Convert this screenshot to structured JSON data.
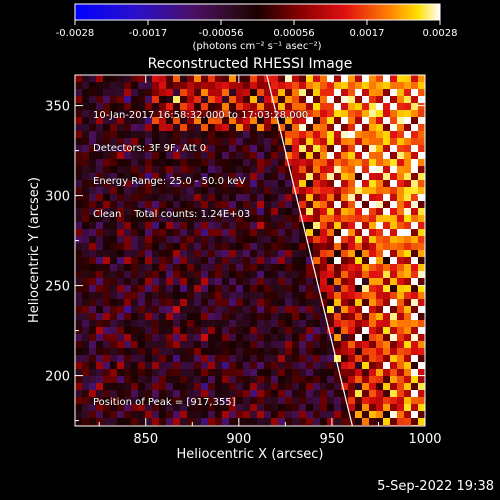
{
  "chart_data": {
    "type": "heatmap",
    "title": "Reconstructed RHESSI Image",
    "xlabel": "Heliocentric X (arcsec)",
    "ylabel": "Heliocentric Y (arcsec)",
    "xlim": [
      812,
      1000
    ],
    "ylim": [
      172,
      367
    ],
    "x_ticks": [
      850,
      900,
      950,
      1000
    ],
    "y_ticks": [
      200,
      250,
      300,
      350
    ],
    "colorbar": {
      "range": [
        -0.0028,
        0.0028
      ],
      "tick_labels": [
        "-0.0028",
        "-0.0017",
        "-0.00056",
        "0.00056",
        "0.0017",
        "0.0028"
      ],
      "units_label": "(photons cm⁻² s⁻¹ asec⁻²)"
    },
    "annotations": {
      "line1": "10-Jan-2017 16:58:32.000 to 17:03:28.000",
      "line2": "Detectors: 3F 9F, Att 0",
      "line3": "Energy Range: 25.0 - 50.0 keV",
      "line4": "Clean    Total counts: 1.24E+03",
      "peak": "Position of Peak = [917,355]"
    },
    "peak_position": [
      917,
      355
    ],
    "limb_line": [
      [
        915,
        367
      ],
      [
        961,
        172
      ]
    ]
  },
  "footer": {
    "date": "5-Sep-2022 19:38"
  }
}
